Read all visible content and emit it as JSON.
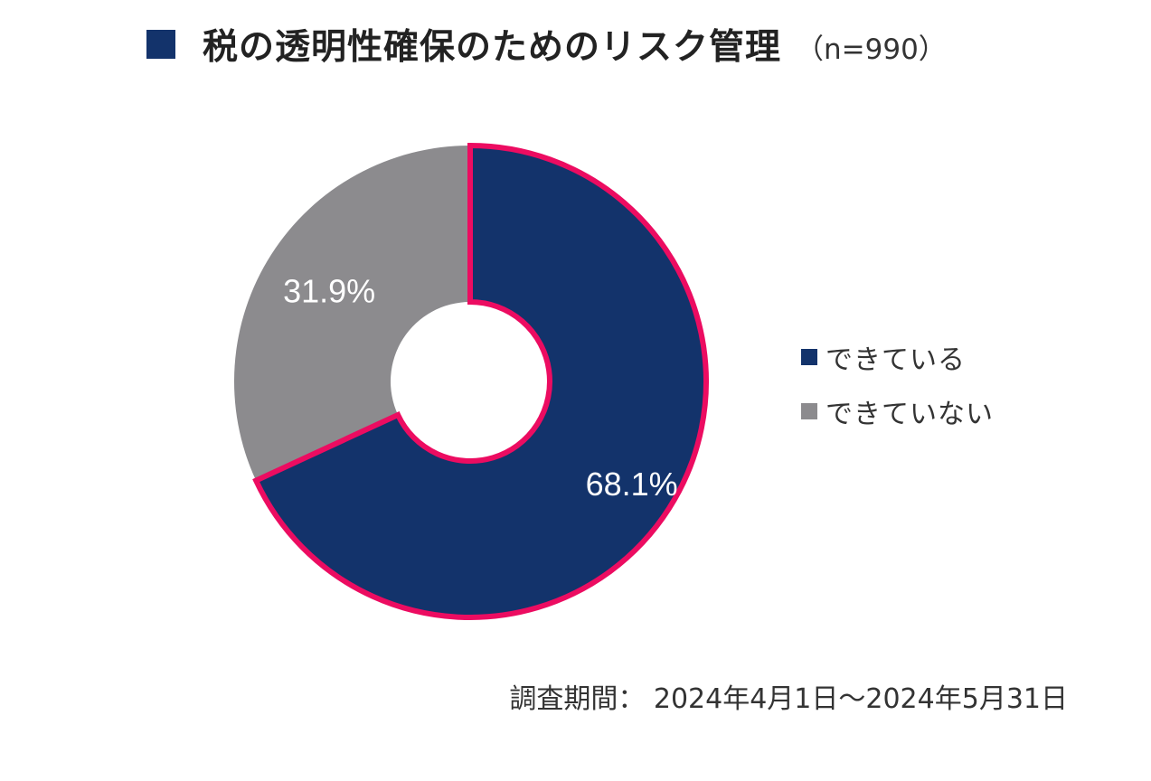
{
  "title": "税の透明性確保のためのリスク管理",
  "subtitle": "（n=990）",
  "period": "調査期間： 2024年4月1日～2024年5月31日",
  "colors": {
    "primary": "#13336b",
    "secondary": "#8c8b8e",
    "highlight": "#ec0c61",
    "title_marker": "#13336b"
  },
  "chart_data": {
    "type": "pie",
    "donut": true,
    "categories": [
      "できている",
      "できていない"
    ],
    "values": [
      68.1,
      31.9
    ],
    "labels": [
      "68.1%",
      "31.9%"
    ],
    "highlighted": "できている",
    "legend_placement": "right"
  },
  "legend": [
    {
      "label": "できている",
      "color": "#13336b"
    },
    {
      "label": "できていない",
      "color": "#8c8b8e"
    }
  ]
}
